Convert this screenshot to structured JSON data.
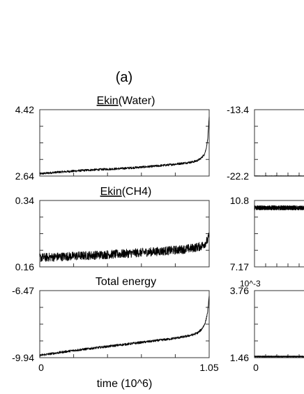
{
  "panel_label": "(a)",
  "chart_data": [
    {
      "type": "line",
      "title": "Ekin(Water)",
      "xlim": [
        0,
        1.05
      ],
      "ylim": [
        2.64,
        4.42
      ],
      "yticklabels": [
        "4.42",
        "2.64"
      ],
      "xticklabels": [],
      "xlabel": "",
      "series": [
        {
          "x": [
            0,
            0.1,
            0.2,
            0.3,
            0.4,
            0.5,
            0.6,
            0.7,
            0.8,
            0.9,
            0.95,
            0.98,
            1.0,
            1.02,
            1.03,
            1.04,
            1.05
          ],
          "y": [
            2.7,
            2.74,
            2.77,
            2.8,
            2.82,
            2.84,
            2.87,
            2.9,
            2.94,
            2.99,
            3.02,
            3.06,
            3.12,
            3.22,
            3.35,
            3.6,
            4.2
          ],
          "noise": 0.03
        }
      ]
    },
    {
      "type": "line",
      "title": "Ekin(CH4)",
      "xlim": [
        0,
        1.05
      ],
      "ylim": [
        0.16,
        0.34
      ],
      "yticklabels": [
        "0.34",
        "0.16"
      ],
      "xticklabels": [],
      "xlabel": "",
      "series": [
        {
          "x": [
            0,
            0.1,
            0.2,
            0.3,
            0.4,
            0.5,
            0.6,
            0.7,
            0.8,
            0.9,
            0.95,
            1.0,
            1.02,
            1.04,
            1.05
          ],
          "y": [
            0.185,
            0.187,
            0.189,
            0.191,
            0.193,
            0.195,
            0.198,
            0.201,
            0.204,
            0.208,
            0.211,
            0.216,
            0.222,
            0.232,
            0.245
          ],
          "noise": 0.012
        }
      ]
    },
    {
      "type": "line",
      "title": "Total energy",
      "xlim": [
        0,
        1.05
      ],
      "ylim": [
        -9.94,
        -6.47
      ],
      "yticklabels": [
        "-6.47",
        "-9.94"
      ],
      "xticklabels": [
        "0",
        "1.05"
      ],
      "xlabel": "time (10^6)",
      "series": [
        {
          "x": [
            0,
            0.1,
            0.2,
            0.3,
            0.4,
            0.5,
            0.6,
            0.7,
            0.8,
            0.9,
            0.95,
            0.98,
            1.0,
            1.02,
            1.03,
            1.04,
            1.05
          ],
          "y": [
            -9.82,
            -9.7,
            -9.58,
            -9.48,
            -9.38,
            -9.28,
            -9.18,
            -9.08,
            -8.98,
            -8.85,
            -8.75,
            -8.65,
            -8.5,
            -8.25,
            -8.0,
            -7.6,
            -6.8
          ],
          "noise": 0.06
        }
      ]
    },
    {
      "type": "line",
      "title": "",
      "xlim": [
        0,
        1.05
      ],
      "ylim": [
        -22.2,
        -13.4
      ],
      "yticklabels": [
        "-13.4",
        "-22.2"
      ],
      "xticklabels": [],
      "xlabel": "",
      "series": [
        {
          "x": [
            0,
            1.05
          ],
          "y": [
            -22.2,
            -22.2
          ],
          "noise": 0.03
        }
      ]
    },
    {
      "type": "line",
      "title": "",
      "xlim": [
        0,
        1.05
      ],
      "ylim": [
        7.17,
        10.8
      ],
      "yticklabels": [
        "10.8",
        "7.17"
      ],
      "xticklabels": [],
      "xlabel": "",
      "series": [
        {
          "x": [
            0,
            1.05
          ],
          "y": [
            10.4,
            10.4
          ],
          "noise": 0.12
        }
      ]
    },
    {
      "type": "line",
      "title": "",
      "scale_label": "10^-3",
      "xlim": [
        0,
        1.05
      ],
      "ylim": [
        1.46,
        3.76
      ],
      "yticklabels": [
        "3.76",
        "1.46"
      ],
      "xticklabels": [
        "0"
      ],
      "xlabel": "",
      "series": [
        {
          "x": [
            0,
            1.05
          ],
          "y": [
            1.5,
            1.5
          ],
          "noise": 0.02
        }
      ]
    }
  ]
}
